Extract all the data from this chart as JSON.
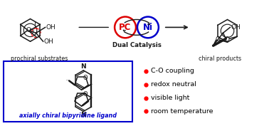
{
  "background_color": "#ffffff",
  "bullet_points": [
    "C-O coupling",
    "redox neutral",
    "visible light",
    "room temperature"
  ],
  "bullet_color": "#ff0000",
  "bullet_text_color": "#000000",
  "label_prochiral": "prochiral substrates",
  "label_chiral": "chiral products",
  "label_dual": "Dual Catalysis",
  "label_ligand": "axially chiral bipyridine ligand",
  "label_ligand_color": "#0000cc",
  "pc_color": "#dd0000",
  "ni_color": "#0000cc",
  "box_color": "#0000cc",
  "bond_color": "#1a1a1a",
  "fig_width": 3.78,
  "fig_height": 1.77,
  "dpi": 100
}
